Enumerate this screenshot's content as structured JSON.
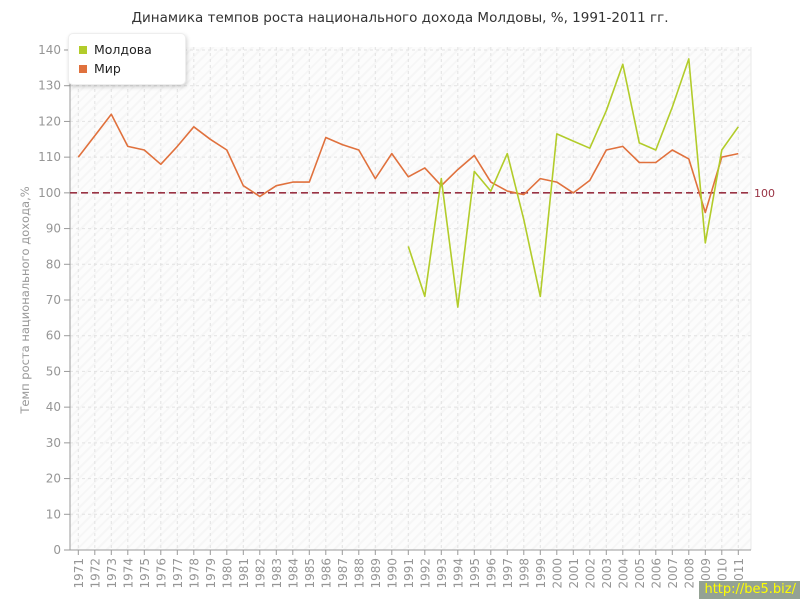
{
  "page": {
    "background": "#ffffff"
  },
  "watermark": {
    "text": "http://be5.biz/",
    "text_color": "#ffff00",
    "background": "#94a294"
  },
  "chart_data": {
    "type": "line",
    "title": "Динамика темпов роста национального дохода Молдовы, %, 1991-2011 гг.",
    "ylabel": "Темп роста национального дохода,%",
    "xlabel": "",
    "ylim": [
      0,
      140
    ],
    "yticks": [
      0,
      10,
      20,
      30,
      40,
      50,
      60,
      70,
      80,
      90,
      100,
      110,
      120,
      130,
      140
    ],
    "x": [
      1971,
      1972,
      1973,
      1974,
      1975,
      1976,
      1977,
      1978,
      1979,
      1980,
      1981,
      1982,
      1983,
      1984,
      1985,
      1986,
      1987,
      1988,
      1989,
      1990,
      1991,
      1992,
      1993,
      1994,
      1995,
      1996,
      1997,
      1998,
      1999,
      2000,
      2001,
      2002,
      2003,
      2004,
      2005,
      2006,
      2007,
      2008,
      2009,
      2010,
      2011
    ],
    "grid": true,
    "legend_position": "top-left",
    "reference_line": {
      "value": 100,
      "label": "100",
      "color": "#993344"
    },
    "series": [
      {
        "name": "Молдова",
        "id": "moldova",
        "color": "#b2cc2a",
        "start_year": 1991,
        "values": [
          85,
          71,
          104,
          68,
          106,
          100.5,
          111,
          92.5,
          71,
          116.5,
          114.5,
          112.5,
          123,
          136,
          114,
          112,
          124,
          137.5,
          86,
          112,
          118.5
        ]
      },
      {
        "name": "Мир",
        "id": "mir",
        "color": "#e0713d",
        "start_year": 1971,
        "values": [
          110,
          116,
          122,
          113,
          112,
          108,
          113,
          118.5,
          115,
          112,
          102,
          99,
          102,
          103,
          103,
          115.5,
          113.5,
          112,
          104,
          111,
          104.5,
          107,
          102,
          106.5,
          110.5,
          103,
          100.5,
          99.5,
          104,
          103,
          100,
          103.5,
          112,
          113,
          108.5,
          108.5,
          112,
          109.5,
          94.5,
          110,
          111
        ]
      }
    ],
    "axis_color": "#9a9a9a",
    "grid_color": "#e2e2e2",
    "tick_label_color": "#969696"
  }
}
